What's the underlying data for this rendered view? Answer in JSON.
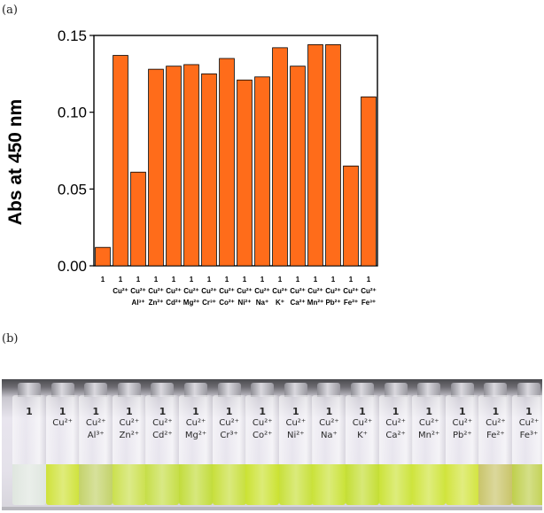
{
  "panel_a_label": "(a)",
  "panel_b_label": "(b)",
  "chart_data": {
    "type": "bar",
    "title": "",
    "xlabel": "",
    "ylabel": "Abs at 450 nm",
    "ylim": [
      0,
      0.15
    ],
    "yticks": [
      "0.00",
      "0.05",
      "0.10",
      "0.15"
    ],
    "bar_color": "#ff6c1a",
    "grid": false,
    "categories": [
      {
        "top": "1",
        "mid": "",
        "bot": ""
      },
      {
        "top": "1",
        "mid": "Cu²⁺",
        "bot": ""
      },
      {
        "top": "1",
        "mid": "Cu²⁺",
        "bot": "Al³⁺"
      },
      {
        "top": "1",
        "mid": "Cu²⁺",
        "bot": "Zn²⁺"
      },
      {
        "top": "1",
        "mid": "Cu²⁺",
        "bot": "Cd²⁺"
      },
      {
        "top": "1",
        "mid": "Cu²⁺",
        "bot": "Mg²⁺"
      },
      {
        "top": "1",
        "mid": "Cu²⁺",
        "bot": "Cr³⁺"
      },
      {
        "top": "1",
        "mid": "Cu²⁺",
        "bot": "Co²⁺"
      },
      {
        "top": "1",
        "mid": "Cu²⁺",
        "bot": "Ni²⁺"
      },
      {
        "top": "1",
        "mid": "Cu²⁺",
        "bot": "Na⁺"
      },
      {
        "top": "1",
        "mid": "Cu²⁺",
        "bot": "K⁺"
      },
      {
        "top": "1",
        "mid": "Cu²⁺",
        "bot": "Ca²⁺"
      },
      {
        "top": "1",
        "mid": "Cu²⁺",
        "bot": "Mn²⁺"
      },
      {
        "top": "1",
        "mid": "Cu²⁺",
        "bot": "Pb²⁺"
      },
      {
        "top": "1",
        "mid": "Cu²⁺",
        "bot": "Fe²⁺"
      },
      {
        "top": "1",
        "mid": "Cu²⁺",
        "bot": "Fe³⁺"
      }
    ],
    "values": [
      0.012,
      0.137,
      0.061,
      0.128,
      0.13,
      0.131,
      0.125,
      0.135,
      0.121,
      0.123,
      0.142,
      0.13,
      0.144,
      0.144,
      0.065,
      0.11
    ]
  },
  "photo": {
    "vials": [
      {
        "line1": "1",
        "line2": "",
        "line3": "",
        "liquid": "#dfe6df"
      },
      {
        "line1": "1",
        "line2": "Cu²⁺",
        "line3": "",
        "liquid": "#cfe23a"
      },
      {
        "line1": "1",
        "line2": "Cu²⁺",
        "line3": "Al³⁺",
        "liquid": "#c3d26a"
      },
      {
        "line1": "1",
        "line2": "Cu²⁺",
        "line3": "Zn²⁺",
        "liquid": "#cbe04e"
      },
      {
        "line1": "1",
        "line2": "Cu²⁺",
        "line3": "Cd²⁺",
        "liquid": "#c6de48"
      },
      {
        "line1": "1",
        "line2": "Cu²⁺",
        "line3": "Mg²⁺",
        "liquid": "#c2dc3c"
      },
      {
        "line1": "1",
        "line2": "Cu²⁺",
        "line3": "Cr³⁺",
        "liquid": "#c8df3c"
      },
      {
        "line1": "1",
        "line2": "Cu²⁺",
        "line3": "Co²⁺",
        "liquid": "#cbe232"
      },
      {
        "line1": "1",
        "line2": "Cu²⁺",
        "line3": "Ni²⁺",
        "liquid": "#c8e03a"
      },
      {
        "line1": "1",
        "line2": "Cu²⁺",
        "line3": "Na⁺",
        "liquid": "#cae238"
      },
      {
        "line1": "1",
        "line2": "Cu²⁺",
        "line3": "K⁺",
        "liquid": "#c4de34"
      },
      {
        "line1": "1",
        "line2": "Cu²⁺",
        "line3": "Ca²⁺",
        "liquid": "#cce33a"
      },
      {
        "line1": "1",
        "line2": "Cu²⁺",
        "line3": "Mn²⁺",
        "liquid": "#cfe43c"
      },
      {
        "line1": "1",
        "line2": "Cu²⁺",
        "line3": "Pb²⁺",
        "liquid": "#d2e43e"
      },
      {
        "line1": "1",
        "line2": "Cu²⁺",
        "line3": "Fe²⁺",
        "liquid": "#c9c46a"
      },
      {
        "line1": "1",
        "line2": "Cu²⁺",
        "line3": "Fe³⁺",
        "liquid": "#bfcf4c"
      }
    ]
  }
}
